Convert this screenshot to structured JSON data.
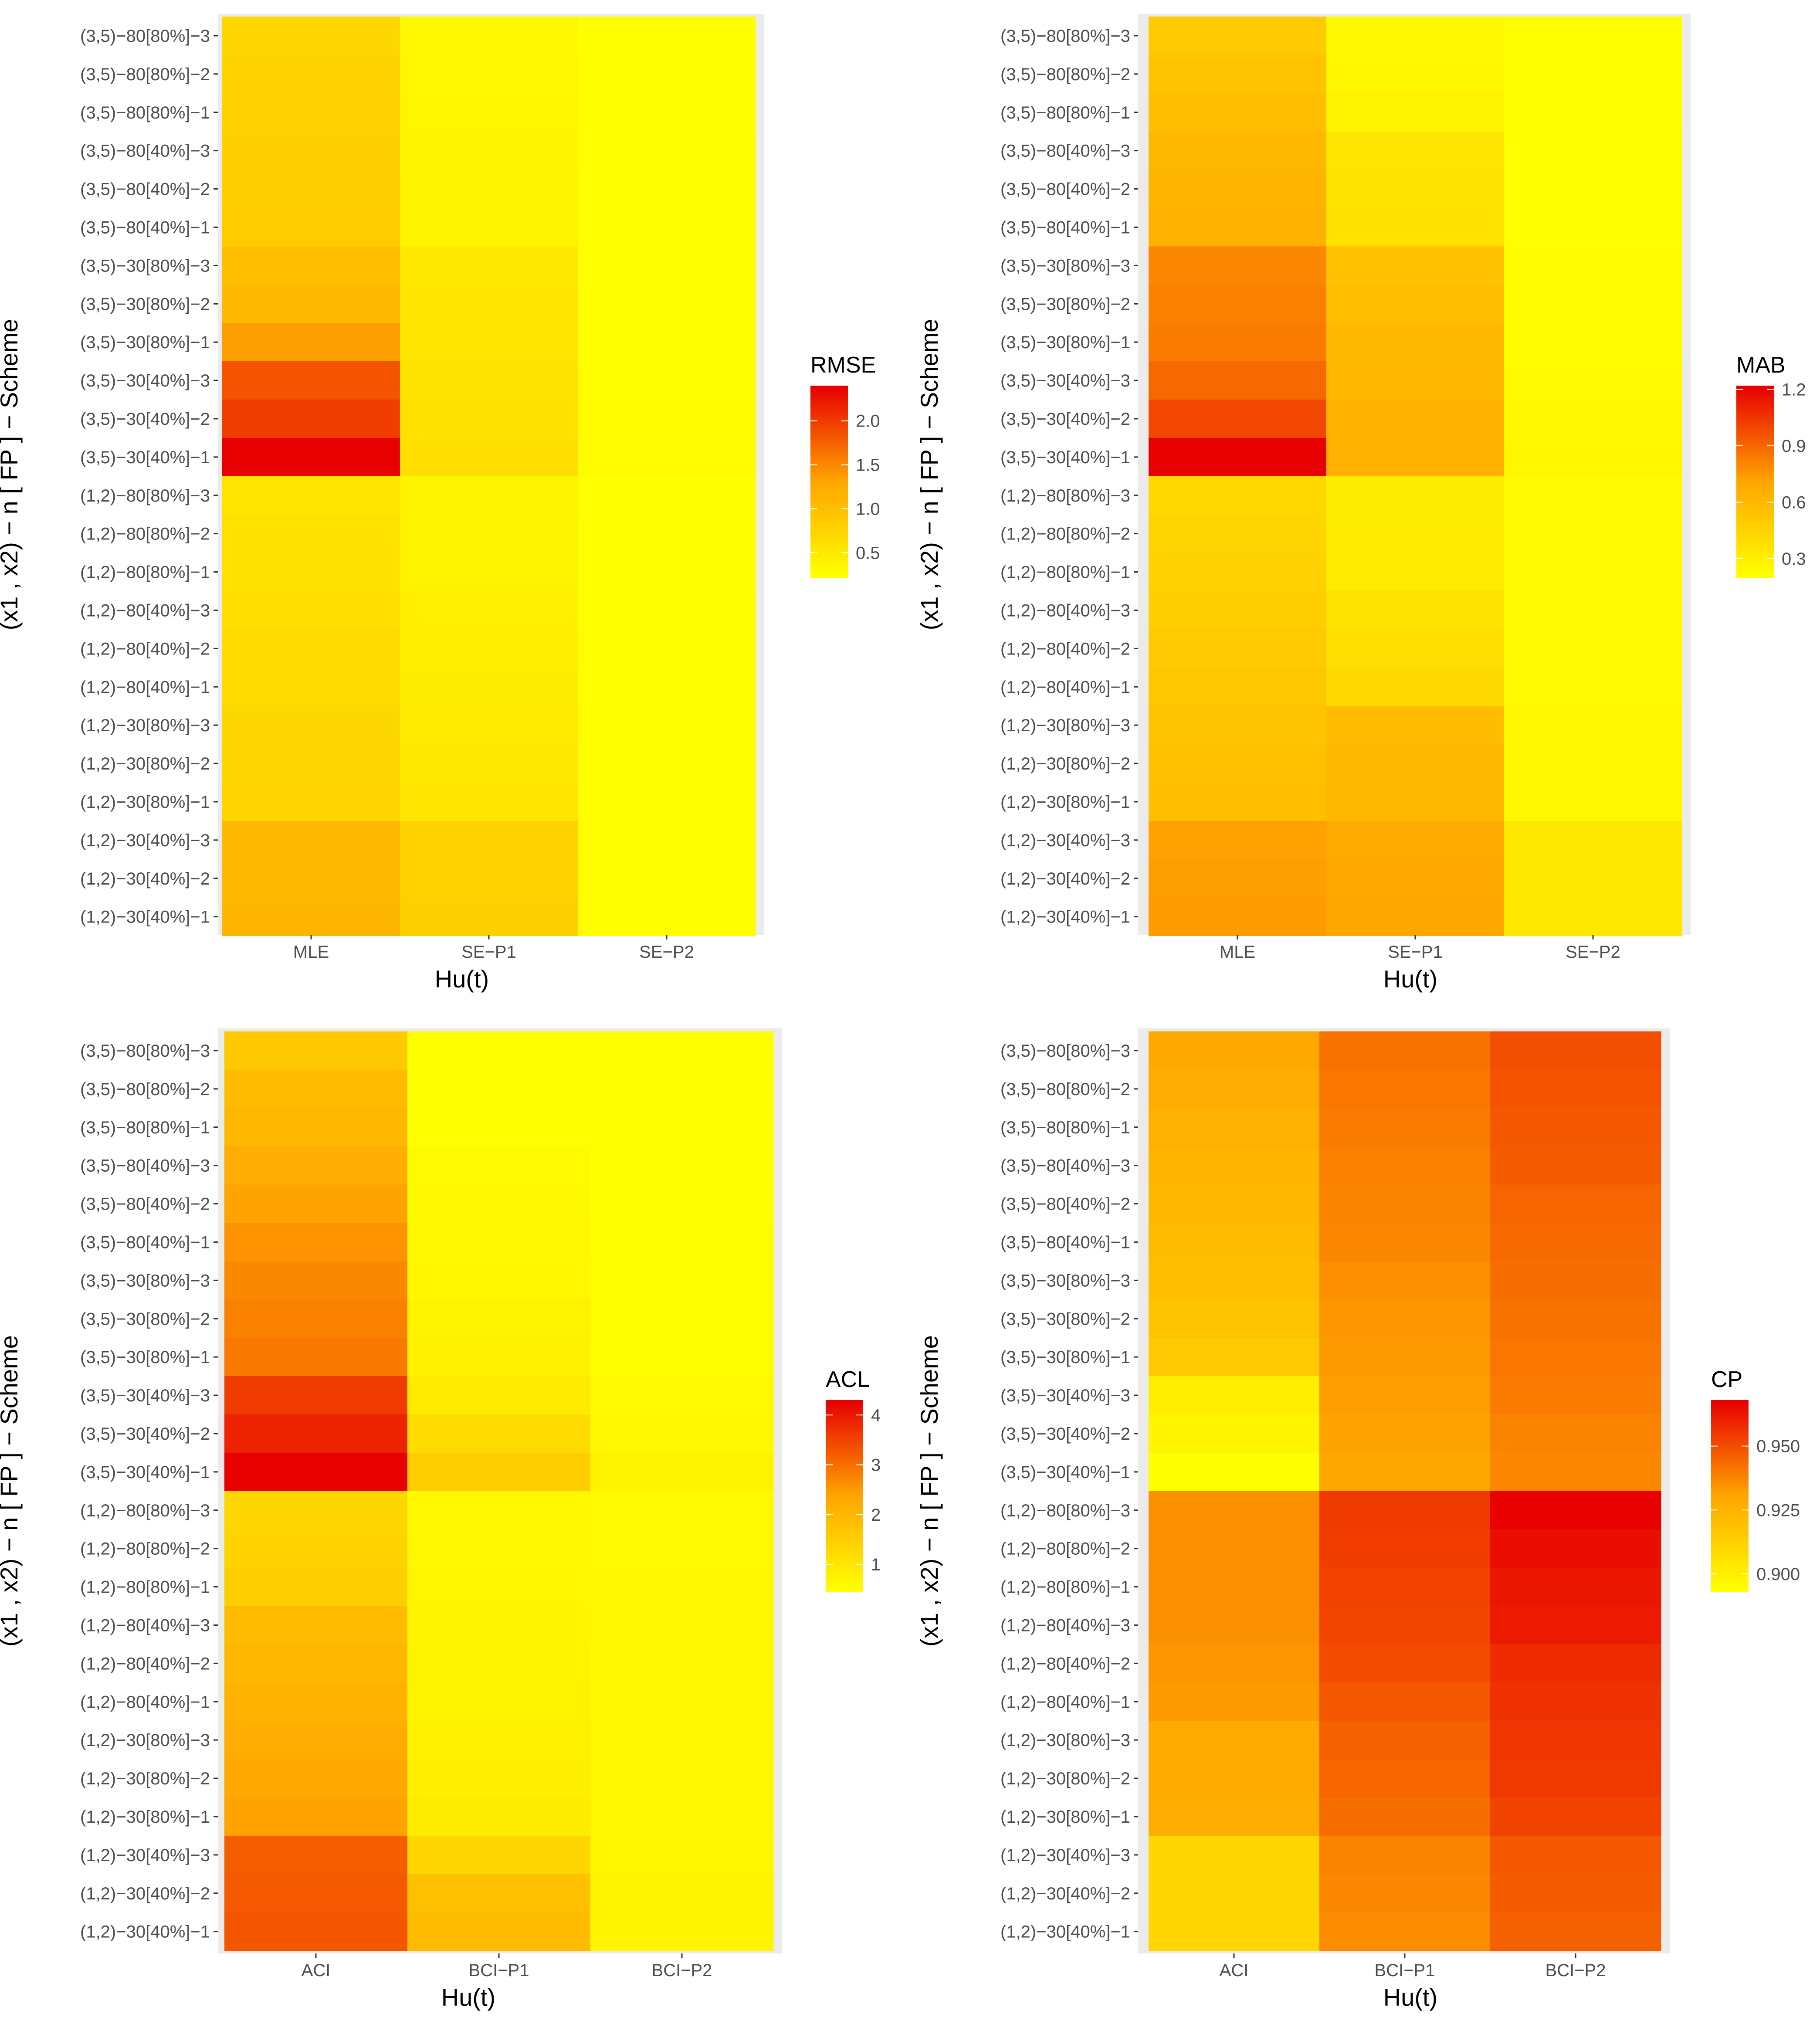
{
  "chart_data": [
    {
      "type": "heatmap",
      "metric": "RMSE",
      "xlabel": "Hu(t)",
      "ylabel": "(x1 , x2) − n [ FP ] − Scheme",
      "categories_x": [
        "MLE",
        "SE−P1",
        "SE−P2"
      ],
      "categories_y": [
        "(3,5)−80[80%]−3",
        "(3,5)−80[80%]−2",
        "(3,5)−80[80%]−1",
        "(3,5)−80[40%]−3",
        "(3,5)−80[40%]−2",
        "(3,5)−80[40%]−1",
        "(3,5)−30[80%]−3",
        "(3,5)−30[80%]−2",
        "(3,5)−30[80%]−1",
        "(3,5)−30[40%]−3",
        "(3,5)−30[40%]−2",
        "(3,5)−30[40%]−1",
        "(1,2)−80[80%]−3",
        "(1,2)−80[80%]−2",
        "(1,2)−80[80%]−1",
        "(1,2)−80[40%]−3",
        "(1,2)−80[40%]−2",
        "(1,2)−80[40%]−1",
        "(1,2)−30[80%]−3",
        "(1,2)−30[80%]−2",
        "(1,2)−30[80%]−1",
        "(1,2)−30[40%]−3",
        "(1,2)−30[40%]−2",
        "(1,2)−30[40%]−1"
      ],
      "values": [
        [
          0.7,
          0.3,
          0.22
        ],
        [
          0.75,
          0.32,
          0.22
        ],
        [
          0.78,
          0.33,
          0.22
        ],
        [
          0.8,
          0.34,
          0.23
        ],
        [
          0.82,
          0.35,
          0.23
        ],
        [
          0.84,
          0.36,
          0.23
        ],
        [
          1.0,
          0.5,
          0.24
        ],
        [
          1.05,
          0.52,
          0.24
        ],
        [
          1.35,
          0.54,
          0.25
        ],
        [
          1.85,
          0.56,
          0.25
        ],
        [
          2.0,
          0.58,
          0.26
        ],
        [
          2.4,
          0.62,
          0.27
        ],
        [
          0.55,
          0.35,
          0.22
        ],
        [
          0.58,
          0.36,
          0.22
        ],
        [
          0.6,
          0.37,
          0.22
        ],
        [
          0.62,
          0.4,
          0.23
        ],
        [
          0.65,
          0.42,
          0.23
        ],
        [
          0.67,
          0.44,
          0.23
        ],
        [
          0.7,
          0.48,
          0.23
        ],
        [
          0.72,
          0.5,
          0.23
        ],
        [
          0.74,
          0.52,
          0.23
        ],
        [
          1.05,
          0.75,
          0.24
        ],
        [
          1.07,
          0.77,
          0.24
        ],
        [
          1.1,
          0.79,
          0.25
        ]
      ],
      "legend": {
        "title": "RMSE",
        "min": 0.22,
        "max": 2.4,
        "ticks": [
          0.5,
          1.0,
          1.5,
          2.0
        ],
        "tick_labels": [
          "0.5",
          "1.0",
          "1.5",
          "2.0"
        ]
      }
    },
    {
      "type": "heatmap",
      "metric": "MAB",
      "xlabel": "Hu(t)",
      "ylabel": "(x1 , x2) − n [ FP ] − Scheme",
      "categories_x": [
        "MLE",
        "SE−P1",
        "SE−P2"
      ],
      "categories_y": [
        "(3,5)−80[80%]−3",
        "(3,5)−80[80%]−2",
        "(3,5)−80[80%]−1",
        "(3,5)−80[40%]−3",
        "(3,5)−80[40%]−2",
        "(3,5)−80[40%]−1",
        "(3,5)−30[80%]−3",
        "(3,5)−30[80%]−2",
        "(3,5)−30[80%]−1",
        "(3,5)−30[40%]−3",
        "(3,5)−30[40%]−2",
        "(3,5)−30[40%]−1",
        "(1,2)−80[80%]−3",
        "(1,2)−80[80%]−2",
        "(1,2)−80[80%]−1",
        "(1,2)−80[40%]−3",
        "(1,2)−80[40%]−2",
        "(1,2)−80[40%]−1",
        "(1,2)−30[80%]−3",
        "(1,2)−30[80%]−2",
        "(1,2)−30[80%]−1",
        "(1,2)−30[40%]−3",
        "(1,2)−30[40%]−2",
        "(1,2)−30[40%]−1"
      ],
      "values": [
        [
          0.5,
          0.24,
          0.2
        ],
        [
          0.54,
          0.25,
          0.2
        ],
        [
          0.57,
          0.26,
          0.2
        ],
        [
          0.6,
          0.35,
          0.21
        ],
        [
          0.62,
          0.36,
          0.21
        ],
        [
          0.64,
          0.37,
          0.21
        ],
        [
          0.8,
          0.55,
          0.22
        ],
        [
          0.82,
          0.57,
          0.22
        ],
        [
          0.84,
          0.59,
          0.22
        ],
        [
          0.9,
          0.61,
          0.23
        ],
        [
          1.0,
          0.63,
          0.24
        ],
        [
          1.22,
          0.65,
          0.25
        ],
        [
          0.42,
          0.3,
          0.23
        ],
        [
          0.44,
          0.31,
          0.23
        ],
        [
          0.46,
          0.32,
          0.23
        ],
        [
          0.48,
          0.36,
          0.23
        ],
        [
          0.5,
          0.38,
          0.23
        ],
        [
          0.52,
          0.42,
          0.23
        ],
        [
          0.54,
          0.58,
          0.24
        ],
        [
          0.55,
          0.59,
          0.24
        ],
        [
          0.56,
          0.6,
          0.24
        ],
        [
          0.72,
          0.68,
          0.33
        ],
        [
          0.73,
          0.69,
          0.33
        ],
        [
          0.74,
          0.7,
          0.33
        ]
      ],
      "legend": {
        "title": "MAB",
        "min": 0.2,
        "max": 1.22,
        "ticks": [
          0.3,
          0.6,
          0.9,
          1.2
        ],
        "tick_labels": [
          "0.3",
          "0.6",
          "0.9",
          "1.2"
        ]
      }
    },
    {
      "type": "heatmap",
      "metric": "ACL",
      "xlabel": "Hu(t)",
      "ylabel": "(x1 , x2) − n [ FP ] − Scheme",
      "categories_x": [
        "ACI",
        "BCI−P1",
        "BCI−P2"
      ],
      "categories_y": [
        "(3,5)−80[80%]−3",
        "(3,5)−80[80%]−2",
        "(3,5)−80[80%]−1",
        "(3,5)−80[40%]−3",
        "(3,5)−80[40%]−2",
        "(3,5)−80[40%]−1",
        "(3,5)−30[80%]−3",
        "(3,5)−30[80%]−2",
        "(3,5)−30[80%]−1",
        "(3,5)−30[40%]−3",
        "(3,5)−30[40%]−2",
        "(3,5)−30[40%]−1",
        "(1,2)−80[80%]−3",
        "(1,2)−80[80%]−2",
        "(1,2)−80[80%]−1",
        "(1,2)−80[40%]−3",
        "(1,2)−80[40%]−2",
        "(1,2)−80[40%]−1",
        "(1,2)−30[80%]−3",
        "(1,2)−30[80%]−2",
        "(1,2)−30[80%]−1",
        "(1,2)−30[40%]−3",
        "(1,2)−30[40%]−2",
        "(1,2)−30[40%]−1"
      ],
      "values": [
        [
          1.6,
          0.45,
          0.45
        ],
        [
          1.9,
          0.48,
          0.45
        ],
        [
          2.0,
          0.5,
          0.45
        ],
        [
          2.2,
          0.55,
          0.46
        ],
        [
          2.4,
          0.58,
          0.46
        ],
        [
          2.6,
          0.6,
          0.47
        ],
        [
          2.7,
          0.65,
          0.48
        ],
        [
          2.8,
          0.7,
          0.49
        ],
        [
          2.9,
          0.75,
          0.5
        ],
        [
          3.6,
          0.9,
          0.55
        ],
        [
          3.9,
          1.2,
          0.6
        ],
        [
          4.3,
          1.5,
          0.7
        ],
        [
          1.3,
          0.6,
          0.55
        ],
        [
          1.4,
          0.62,
          0.56
        ],
        [
          1.5,
          0.64,
          0.57
        ],
        [
          1.9,
          0.66,
          0.58
        ],
        [
          2.0,
          0.68,
          0.59
        ],
        [
          2.1,
          0.7,
          0.6
        ],
        [
          2.2,
          0.76,
          0.61
        ],
        [
          2.3,
          0.8,
          0.62
        ],
        [
          2.4,
          0.84,
          0.63
        ],
        [
          3.2,
          1.3,
          0.65
        ],
        [
          3.25,
          1.8,
          0.66
        ],
        [
          3.3,
          1.9,
          0.67
        ]
      ],
      "legend": {
        "title": "ACL",
        "min": 0.45,
        "max": 4.3,
        "ticks": [
          1,
          2,
          3,
          4
        ],
        "tick_labels": [
          "1",
          "2",
          "3",
          "4"
        ]
      }
    },
    {
      "type": "heatmap",
      "metric": "CP",
      "xlabel": "Hu(t)",
      "ylabel": "(x1 , x2) − n [ FP ] − Scheme",
      "categories_x": [
        "ACI",
        "BCI−P1",
        "BCI−P2"
      ],
      "categories_y": [
        "(3,5)−80[80%]−3",
        "(3,5)−80[80%]−2",
        "(3,5)−80[80%]−1",
        "(3,5)−80[40%]−3",
        "(3,5)−80[40%]−2",
        "(3,5)−80[40%]−1",
        "(3,5)−30[80%]−3",
        "(3,5)−30[80%]−2",
        "(3,5)−30[80%]−1",
        "(3,5)−30[40%]−3",
        "(3,5)−30[40%]−2",
        "(3,5)−30[40%]−1",
        "(1,2)−80[80%]−3",
        "(1,2)−80[80%]−2",
        "(1,2)−80[80%]−1",
        "(1,2)−80[40%]−3",
        "(1,2)−80[40%]−2",
        "(1,2)−80[40%]−1",
        "(1,2)−30[80%]−3",
        "(1,2)−30[80%]−2",
        "(1,2)−30[80%]−1",
        "(1,2)−30[40%]−3",
        "(1,2)−30[40%]−2",
        "(1,2)−30[40%]−1"
      ],
      "values": [
        [
          0.929,
          0.942,
          0.95
        ],
        [
          0.927,
          0.941,
          0.949
        ],
        [
          0.926,
          0.94,
          0.948
        ],
        [
          0.924,
          0.939,
          0.947
        ],
        [
          0.923,
          0.938,
          0.945
        ],
        [
          0.921,
          0.937,
          0.944
        ],
        [
          0.92,
          0.935,
          0.943
        ],
        [
          0.918,
          0.934,
          0.942
        ],
        [
          0.915,
          0.933,
          0.941
        ],
        [
          0.9,
          0.932,
          0.94
        ],
        [
          0.897,
          0.931,
          0.938
        ],
        [
          0.893,
          0.93,
          0.937
        ],
        [
          0.935,
          0.955,
          0.968
        ],
        [
          0.935,
          0.954,
          0.965
        ],
        [
          0.935,
          0.953,
          0.963
        ],
        [
          0.935,
          0.952,
          0.962
        ],
        [
          0.934,
          0.951,
          0.958
        ],
        [
          0.933,
          0.948,
          0.957
        ],
        [
          0.928,
          0.946,
          0.956
        ],
        [
          0.928,
          0.945,
          0.955
        ],
        [
          0.927,
          0.943,
          0.953
        ],
        [
          0.91,
          0.938,
          0.948
        ],
        [
          0.91,
          0.937,
          0.947
        ],
        [
          0.91,
          0.936,
          0.946
        ]
      ],
      "legend": {
        "title": "CP",
        "min": 0.893,
        "max": 0.968,
        "ticks": [
          0.9,
          0.925,
          0.95
        ],
        "tick_labels": [
          "0.900",
          "0.925",
          "0.950"
        ]
      }
    }
  ]
}
